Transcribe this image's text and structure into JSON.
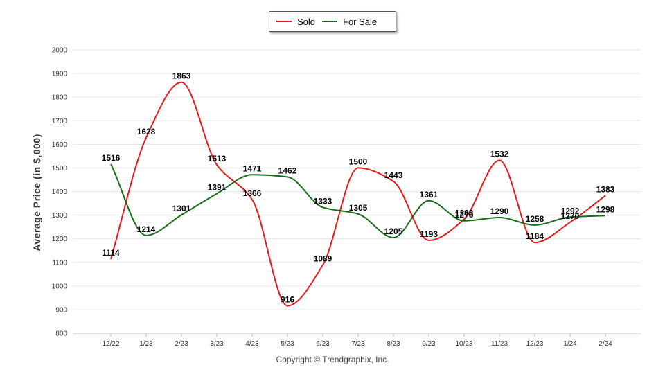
{
  "chart_data": {
    "type": "line",
    "title": "",
    "xlabel": "",
    "ylabel": "Average Price (in $,000)",
    "categories": [
      "12/22",
      "1/23",
      "2/23",
      "3/23",
      "4/23",
      "5/23",
      "6/23",
      "7/23",
      "8/23",
      "9/23",
      "10/23",
      "11/23",
      "12/23",
      "1/24",
      "2/24"
    ],
    "ylim": [
      800,
      2000
    ],
    "yticks": [
      800,
      900,
      1000,
      1100,
      1200,
      1300,
      1400,
      1500,
      1600,
      1700,
      1800,
      1900,
      2000
    ],
    "grid": true,
    "legend_position": "top-center",
    "series": [
      {
        "name": "Sold",
        "color": "#e31a1c",
        "values": [
          1114,
          1628,
          1863,
          1513,
          1366,
          916,
          1089,
          1500,
          1443,
          1193,
          1283,
          1532,
          1184,
          1270,
          1383
        ]
      },
      {
        "name": "For Sale",
        "color": "#1a6b1a",
        "values": [
          1516,
          1214,
          1301,
          1391,
          1471,
          1462,
          1333,
          1305,
          1205,
          1361,
          1276,
          1290,
          1258,
          1292,
          1298
        ]
      }
    ]
  },
  "footer": "Copyright © Trendgraphix, Inc."
}
